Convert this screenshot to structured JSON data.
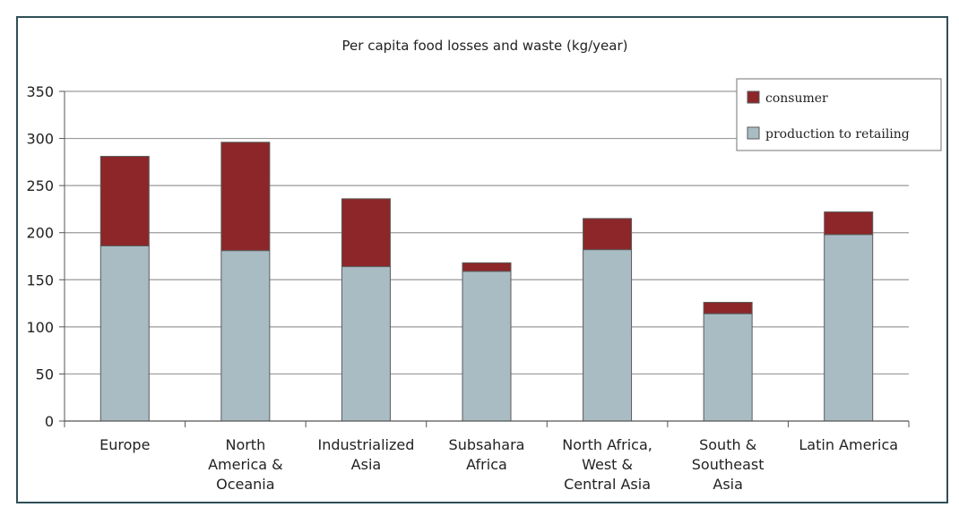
{
  "chart_data": {
    "type": "bar",
    "stacked": true,
    "title": "Per capita food losses and waste (kg/year)",
    "xlabel": "",
    "ylabel": "",
    "ylim": [
      0,
      350
    ],
    "yticks": [
      0,
      50,
      100,
      150,
      200,
      250,
      300,
      350
    ],
    "grid": true,
    "legend_position": "top-right",
    "categories": [
      [
        "Europe"
      ],
      [
        "North",
        "America &",
        "Oceania"
      ],
      [
        "Industrialized",
        "Asia"
      ],
      [
        "Subsahara",
        "Africa"
      ],
      [
        "North Africa,",
        "West &",
        "Central Asia"
      ],
      [
        "South &",
        "Southeast",
        "Asia"
      ],
      [
        "Latin America"
      ]
    ],
    "series": [
      {
        "name": "production to retailing",
        "color": "#a9bcc4",
        "values": [
          186,
          181,
          164,
          159,
          182,
          114,
          198
        ]
      },
      {
        "name": "consumer",
        "color": "#8c2628",
        "values": [
          95,
          115,
          72,
          9,
          33,
          12,
          24
        ]
      }
    ],
    "legend_order": [
      "consumer",
      "production to retailing"
    ]
  }
}
